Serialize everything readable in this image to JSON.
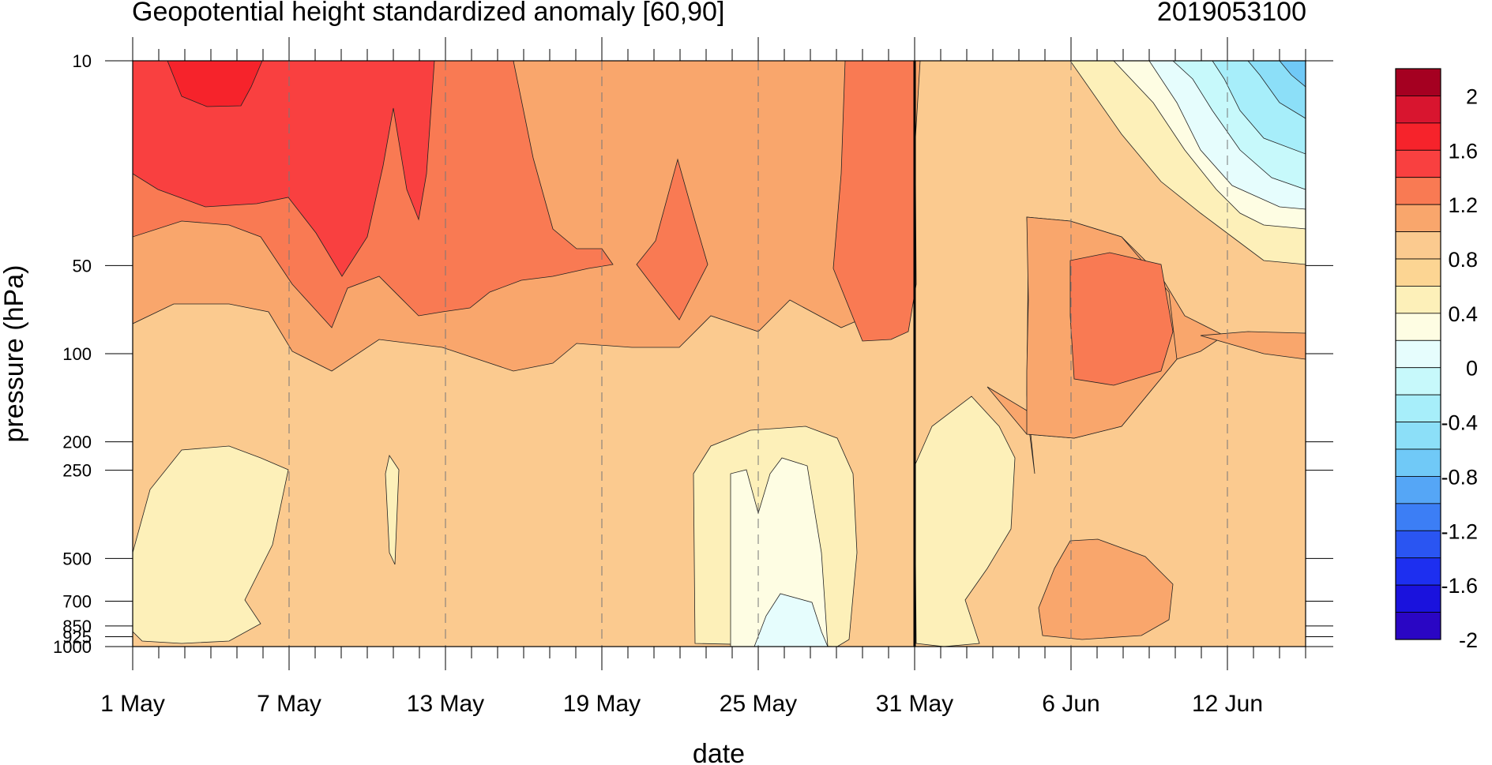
{
  "chart_data": {
    "type": "contour",
    "title": "Geopotential height standardized anomaly [60,90]",
    "right_title": "2019053100",
    "xlabel": "date",
    "ylabel": "pressure (hPa)",
    "x_ticks": [
      "1 May",
      "7 May",
      "13 May",
      "19 May",
      "25 May",
      "31 May",
      "6 Jun",
      "12 Jun"
    ],
    "y_ticks": [
      "10",
      "50",
      "100",
      "200",
      "250",
      "500",
      "700",
      "850",
      "925",
      "1000"
    ],
    "y_scale": "log",
    "y_reversed": true,
    "ylim": [
      1000,
      10
    ],
    "xlim": [
      "1 May",
      "15 Jun"
    ],
    "marker_line_date": "31 May",
    "colorbar": {
      "labels": [
        "2",
        "1.6",
        "1.2",
        "0.8",
        "0.4",
        "0",
        "-0.4",
        "-0.8",
        "-1.2",
        "-1.6",
        "-2"
      ],
      "colors": [
        "#a50021",
        "#d8152f",
        "#f6232b",
        "#f94040",
        "#f97a53",
        "#f9a66c",
        "#fbca8f",
        "#fcd593",
        "#fdf0b9",
        "#fefde3",
        "#e6fdfd",
        "#c7f9fb",
        "#a7eefa",
        "#8cdff8",
        "#70c9f7",
        "#55a6f6",
        "#3c7ef5",
        "#2a55f2",
        "#1d2ff0",
        "#1a12dd",
        "#2a06c4"
      ]
    },
    "field_summary": [
      {
        "period": "1 May - 13 May",
        "level": "10-50 hPa",
        "value": 1.5
      },
      {
        "period": "14 May - 28 May",
        "level": "10-100 hPa",
        "value": 0.9
      },
      {
        "period": "29 May - 31 May",
        "level": "10-100 hPa",
        "value": 1.1
      },
      {
        "period": "1 May - 31 May",
        "level": "100-200 hPa",
        "value": 0.7
      },
      {
        "period": "1 May - 31 May",
        "level": "250-1000 hPa",
        "value": 0.5
      },
      {
        "period": "24 May - 27 May",
        "level": "250-1000 hPa",
        "value": 0.1
      },
      {
        "period": "26 May - 27 May",
        "level": "850-1000 hPa",
        "value": -0.2
      },
      {
        "period": "6 Jun - 9 Jun",
        "level": "50-150 hPa",
        "value": 1.1
      },
      {
        "period": "6 Jun - 9 Jun",
        "level": "500-850 hPa",
        "value": 0.9
      },
      {
        "period": "10 Jun - 15 Jun",
        "level": "10-40 hPa",
        "value": -0.6
      }
    ]
  }
}
